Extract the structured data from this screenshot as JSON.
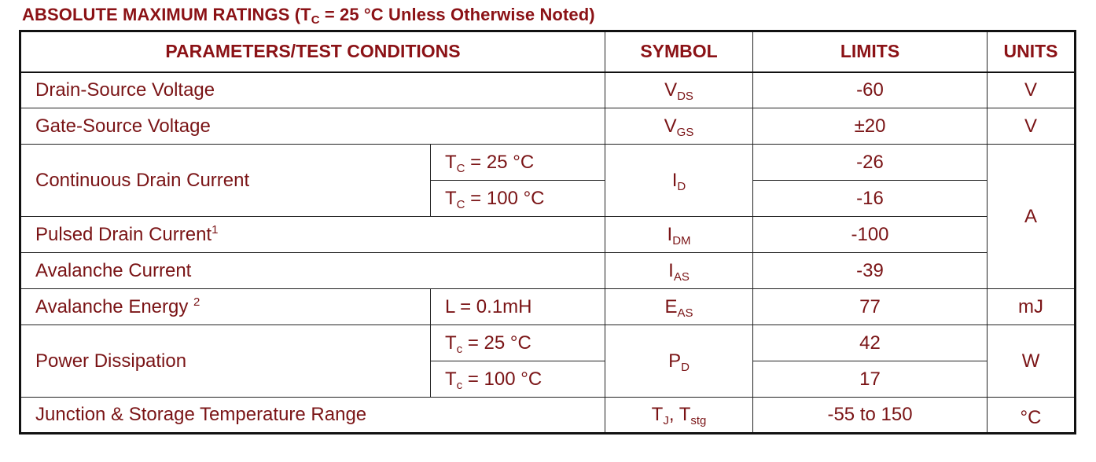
{
  "title": {
    "prefix": "ABSOLUTE MAXIMUM RATINGS (T",
    "sub": "C",
    "suffix": " = 25 °C Unless Otherwise Noted)"
  },
  "headers": {
    "parameters": "PARAMETERS/TEST CONDITIONS",
    "symbol": "SYMBOL",
    "limits": "LIMITS",
    "units": "UNITS"
  },
  "rows": {
    "vds": {
      "param": "Drain-Source Voltage",
      "sym": "V",
      "sym_sub": "DS",
      "limit": "-60",
      "unit": "V"
    },
    "vgs": {
      "param": "Gate-Source Voltage",
      "sym": "V",
      "sym_sub": "GS",
      "limit": "±20",
      "unit": "V"
    },
    "id": {
      "param": "Continuous Drain Current",
      "cond1_pre": "T",
      "cond1_sub": "C",
      "cond1_post": " = 25 °C",
      "cond2_pre": "T",
      "cond2_sub": "C",
      "cond2_post": " = 100 °C",
      "sym": "I",
      "sym_sub": "D",
      "limit1": "-26",
      "limit2": "-16",
      "unit": "A"
    },
    "idm": {
      "param": "Pulsed Drain Current",
      "param_sup": "1",
      "sym": "I",
      "sym_sub": "DM",
      "limit": "-100"
    },
    "ias": {
      "param": "Avalanche Current",
      "sym": "I",
      "sym_sub": "AS",
      "limit": "-39"
    },
    "eas": {
      "param": "Avalanche Energy ",
      "param_sup": "2",
      "cond": "L = 0.1mH",
      "sym": "E",
      "sym_sub": "AS",
      "limit": "77",
      "unit": "mJ"
    },
    "pd": {
      "param": "Power Dissipation",
      "cond1_pre": "T",
      "cond1_sub": "c",
      "cond1_post": " = 25 °C",
      "cond2_pre": "T",
      "cond2_sub": "c",
      "cond2_post": " = 100 °C",
      "sym": "P",
      "sym_sub": "D",
      "limit1": "42",
      "limit2": "17",
      "unit": "W"
    },
    "tj": {
      "param": "Junction & Storage Temperature Range",
      "sym1": "T",
      "sym1_sub": "J",
      "sym_sep": ", T",
      "sym2_sub": "stg",
      "limit": "-55 to 150",
      "unit": "°C"
    }
  }
}
